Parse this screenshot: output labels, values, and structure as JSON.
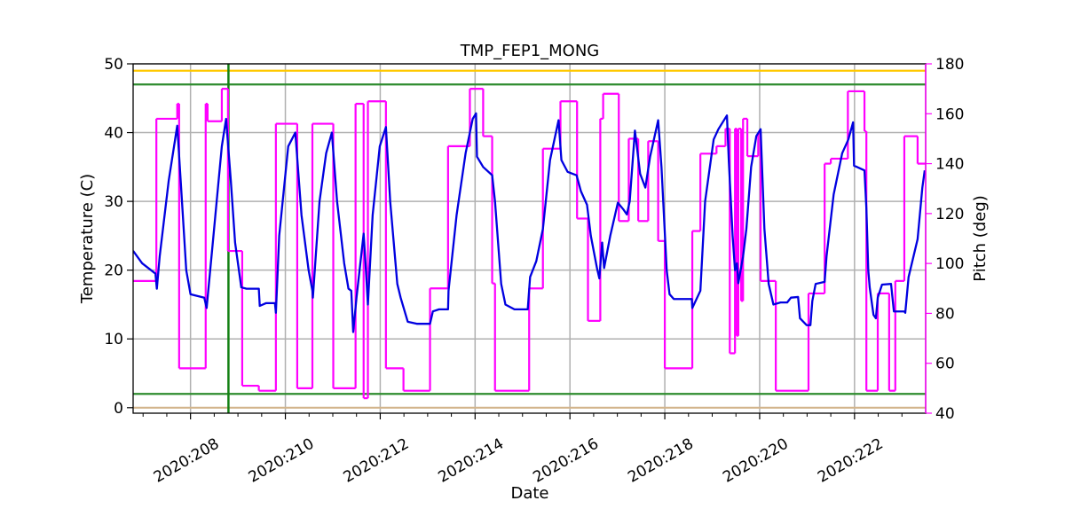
{
  "chart_data": {
    "type": "line",
    "title": "TMP_FEP1_MONG",
    "xlabel": "Date",
    "ylabel": "Temperature (C)",
    "y2label": "Pitch (deg)",
    "y2color": "#ff00ff",
    "xlim": [
      206.79,
      223.5
    ],
    "ylim": [
      -0.8,
      50
    ],
    "y2lim": [
      40,
      180
    ],
    "xticks": [
      {
        "value": 208,
        "label": "2020:208"
      },
      {
        "value": 210,
        "label": "2020:210"
      },
      {
        "value": 212,
        "label": "2020:212"
      },
      {
        "value": 214,
        "label": "2020:214"
      },
      {
        "value": 216,
        "label": "2020:216"
      },
      {
        "value": 218,
        "label": "2020:218"
      },
      {
        "value": 220,
        "label": "2020:220"
      },
      {
        "value": 222,
        "label": "2020:222"
      }
    ],
    "xminorticks": [
      207,
      207.5,
      208.5,
      209,
      209.5,
      210.5,
      211,
      211.5,
      212.5,
      213,
      213.5,
      214.5,
      215,
      215.5,
      216.5,
      217,
      217.5,
      218.5,
      219,
      219.5,
      220.5,
      221,
      221.5,
      222.5,
      223
    ],
    "yticks": [
      0,
      10,
      20,
      30,
      40,
      50
    ],
    "y2ticks": [
      40,
      60,
      80,
      100,
      120,
      140,
      160,
      180
    ],
    "grid": true,
    "hlines": [
      {
        "value": 49,
        "color": "#ffc800"
      },
      {
        "value": 47,
        "color": "#2e8b2e"
      },
      {
        "value": 2,
        "color": "#2e8b2e"
      },
      {
        "value": 0,
        "color": "#d2b48c"
      }
    ],
    "vlines": [
      {
        "value": 208.8,
        "color": "#138013"
      }
    ],
    "series": [
      {
        "color": "#0000e0",
        "axis": "y",
        "step": false,
        "x": [
          206.79,
          206.98,
          207.26,
          207.29,
          207.35,
          207.54,
          207.72,
          207.82,
          207.91,
          208.0,
          208.29,
          208.34,
          208.47,
          208.66,
          208.75,
          208.85,
          208.94,
          209.07,
          209.18,
          209.44,
          209.46,
          209.59,
          209.78,
          209.8,
          209.87,
          210.06,
          210.21,
          210.34,
          210.49,
          210.57,
          210.58,
          210.72,
          210.86,
          210.98,
          211.09,
          211.24,
          211.33,
          211.39,
          211.43,
          211.5,
          211.65,
          211.69,
          211.74,
          211.84,
          211.99,
          212.12,
          212.21,
          212.36,
          212.43,
          212.58,
          212.77,
          213.05,
          213.11,
          213.24,
          213.43,
          213.44,
          213.61,
          213.8,
          213.95,
          214.02,
          214.04,
          214.17,
          214.36,
          214.42,
          214.55,
          214.64,
          214.83,
          215.11,
          215.16,
          215.29,
          215.43,
          215.58,
          215.76,
          215.82,
          215.95,
          216.14,
          216.23,
          216.36,
          216.44,
          216.57,
          216.62,
          216.68,
          216.72,
          216.85,
          217.01,
          217.13,
          217.2,
          217.26,
          217.37,
          217.48,
          217.59,
          217.69,
          217.86,
          217.93,
          218.04,
          218.1,
          218.19,
          218.57,
          218.58,
          218.75,
          218.85,
          219.03,
          219.13,
          219.22,
          219.31,
          219.35,
          219.43,
          219.48,
          219.52,
          219.55,
          219.65,
          219.72,
          219.82,
          219.93,
          220.02,
          220.1,
          220.19,
          220.29,
          220.44,
          220.58,
          220.66,
          220.81,
          220.85,
          220.99,
          221.07,
          221.11,
          221.18,
          221.37,
          221.41,
          221.56,
          221.74,
          221.87,
          221.97,
          221.99,
          222.21,
          222.25,
          222.29,
          222.32,
          222.4,
          222.45,
          222.49,
          222.58,
          222.77,
          222.83,
          223.05,
          223.07,
          223.14,
          223.33,
          223.43,
          223.48
        ],
        "values": [
          22.8,
          21,
          19.5,
          17.3,
          22,
          33,
          41,
          30,
          20,
          16.5,
          16,
          14.5,
          24,
          38,
          42,
          33,
          24,
          17.5,
          17.3,
          17.3,
          14.8,
          15.2,
          15.2,
          13.8,
          25,
          38,
          40,
          28,
          20,
          17,
          16,
          30,
          37,
          40,
          30,
          21,
          17.3,
          17,
          11,
          16,
          25.3,
          21,
          15,
          28,
          38,
          40.8,
          30,
          18,
          16,
          12.5,
          12.2,
          12.2,
          14,
          14.3,
          14.3,
          17,
          28,
          37,
          42,
          42.8,
          36.5,
          35,
          33.8,
          30,
          18,
          15,
          14.3,
          14.3,
          19,
          21.3,
          26,
          36,
          41.8,
          36,
          34.3,
          33.8,
          31.5,
          29.5,
          25,
          20.3,
          18.8,
          24,
          20.3,
          25,
          29.8,
          28.8,
          28.1,
          30,
          40.3,
          34,
          32,
          36.5,
          41.8,
          35,
          20,
          16.5,
          15.8,
          15.8,
          14.5,
          17,
          30,
          39,
          40.5,
          41.5,
          42.5,
          35.8,
          25,
          20,
          21,
          18.1,
          22,
          26,
          35,
          39.5,
          40.5,
          26,
          18,
          15,
          15.3,
          15.3,
          16,
          16.1,
          13,
          12,
          12,
          15.5,
          18,
          18.3,
          22,
          31,
          37,
          39,
          41.5,
          35.2,
          34.5,
          29,
          20,
          17.5,
          13.5,
          13,
          16,
          17.9,
          18,
          14,
          14,
          13.8,
          19,
          24.5,
          32,
          34.5
        ]
      },
      {
        "color": "#ff00ff",
        "axis": "y2",
        "step": true,
        "x": [
          206.79,
          207.28,
          207.72,
          207.76,
          208.32,
          208.36,
          208.66,
          208.79,
          209.09,
          209.44,
          209.8,
          210.25,
          210.57,
          211.01,
          211.48,
          211.65,
          211.74,
          212.12,
          212.49,
          213.05,
          213.43,
          213.89,
          214.17,
          214.36,
          214.42,
          215.14,
          215.43,
          215.8,
          216.15,
          216.38,
          216.64,
          216.7,
          217.03,
          217.24,
          217.44,
          217.65,
          217.86,
          218.0,
          218.58,
          218.75,
          219.09,
          219.28,
          219.37,
          219.48,
          219.52,
          219.55,
          219.61,
          219.65,
          219.74,
          219.97,
          220.02,
          220.34,
          221.03,
          221.37,
          221.5,
          221.86,
          222.21,
          222.25,
          222.49,
          222.73,
          222.86,
          223.05,
          223.33
        ],
        "values": [
          93,
          158,
          164,
          58,
          164,
          157,
          170,
          105,
          51,
          49,
          156,
          50,
          156,
          50,
          164,
          46,
          165,
          58,
          49,
          90,
          147,
          170,
          151,
          92,
          49,
          90,
          146,
          165,
          118,
          77,
          158,
          168,
          117,
          150,
          117,
          149,
          109,
          58,
          113,
          144,
          147,
          154,
          64,
          154,
          71,
          154,
          85,
          158,
          143,
          152,
          93,
          49,
          88,
          140,
          142,
          169,
          153,
          49,
          88,
          49,
          93,
          151,
          140
        ]
      }
    ]
  }
}
